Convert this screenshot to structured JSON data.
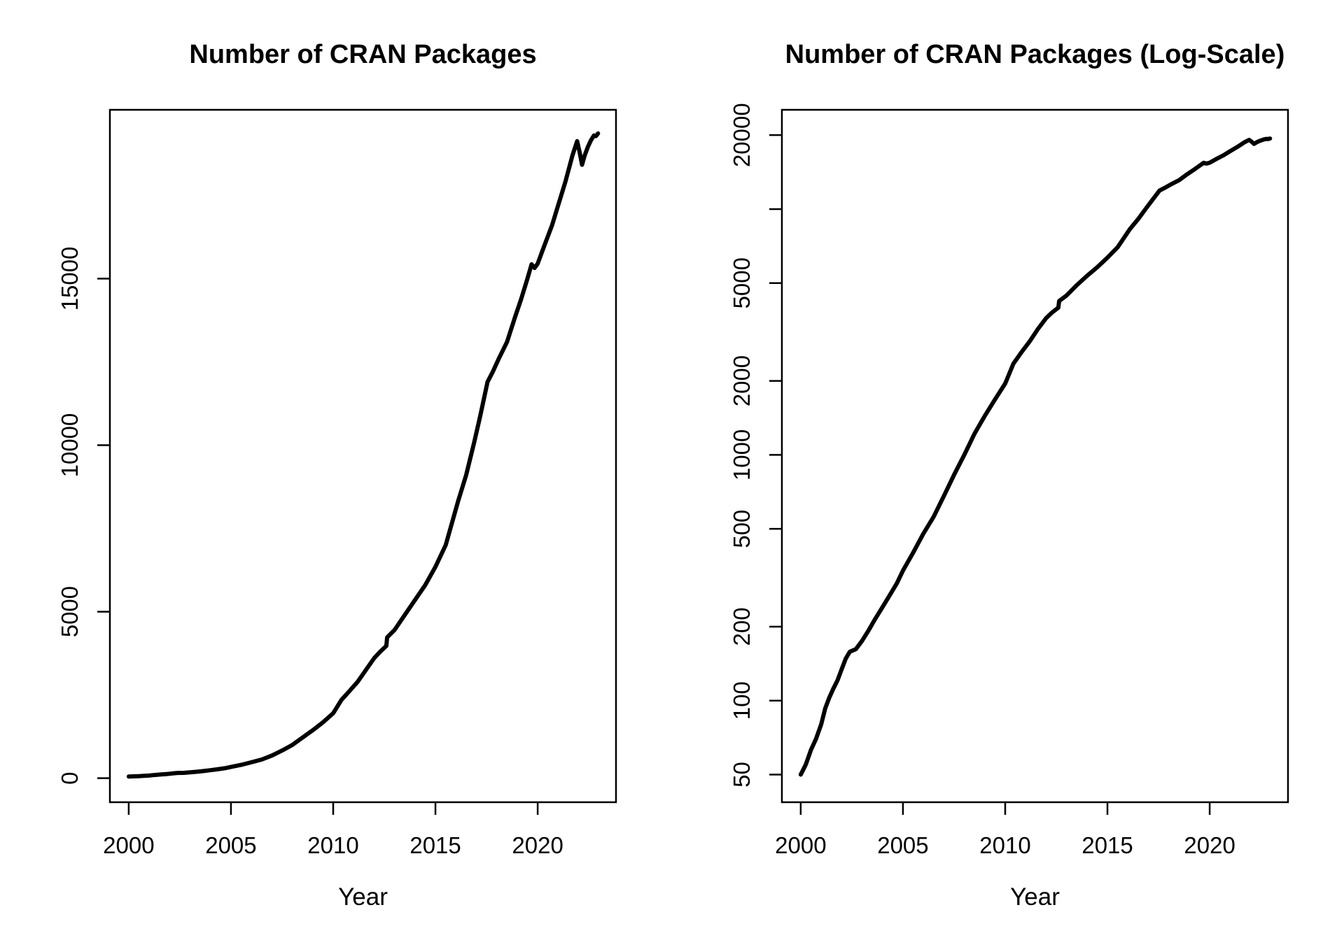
{
  "page": {
    "background_color": "#ffffff",
    "foreground_color": "#000000"
  },
  "chart_data": [
    {
      "type": "line",
      "title": "Number of CRAN Packages",
      "xlabel": "Year",
      "ylabel": "",
      "y_scale": "linear",
      "grid": false,
      "legend": null,
      "xlim": [
        1999.08,
        2023.83
      ],
      "ylim": [
        -721,
        20070
      ],
      "x_ticks": [
        {
          "v": 2000,
          "label": "2000"
        },
        {
          "v": 2005,
          "label": "2005"
        },
        {
          "v": 2010,
          "label": "2010"
        },
        {
          "v": 2015,
          "label": "2015"
        },
        {
          "v": 2020,
          "label": "2020"
        }
      ],
      "y_ticks": [
        {
          "v": 0,
          "label": "0"
        },
        {
          "v": 5000,
          "label": "5000"
        },
        {
          "v": 10000,
          "label": "10000"
        },
        {
          "v": 15000,
          "label": "15000"
        }
      ],
      "line_color": "#000000",
      "line_width": 6,
      "series": [
        {
          "name": "CRAN packages",
          "x": [
            2000.0,
            2000.25,
            2000.5,
            2000.75,
            2001.0,
            2001.2,
            2001.4,
            2001.6,
            2001.8,
            2002.0,
            2002.2,
            2002.4,
            2002.7,
            2003.0,
            2003.3,
            2003.6,
            2004.0,
            2004.35,
            2004.7,
            2005.0,
            2005.5,
            2006.0,
            2006.5,
            2007.0,
            2007.5,
            2008.0,
            2008.5,
            2009.0,
            2009.5,
            2010.0,
            2010.4,
            2010.8,
            2011.2,
            2011.6,
            2012.0,
            2012.3,
            2012.6,
            2012.64,
            2013.0,
            2013.5,
            2014.0,
            2014.5,
            2015.0,
            2015.5,
            2016.1,
            2016.5,
            2016.9,
            2017.2,
            2017.55,
            2017.8,
            2018.1,
            2018.5,
            2018.9,
            2019.2,
            2019.5,
            2019.7,
            2019.85,
            2020.0,
            2020.3,
            2020.7,
            2021.0,
            2021.35,
            2021.7,
            2021.93,
            2022.05,
            2022.17,
            2022.3,
            2022.45,
            2022.6,
            2022.75,
            2022.85,
            2022.95
          ],
          "y": [
            50,
            55,
            63,
            70,
            80,
            93,
            103,
            112,
            121,
            134,
            148,
            158,
            162,
            175,
            192,
            212,
            240,
            268,
            300,
            338,
            400,
            478,
            560,
            680,
            830,
            1000,
            1220,
            1440,
            1680,
            1950,
            2350,
            2620,
            2900,
            3250,
            3600,
            3800,
            3970,
            4230,
            4450,
            4900,
            5350,
            5800,
            6350,
            7000,
            8300,
            9100,
            10100,
            10900,
            11900,
            12200,
            12600,
            13100,
            13860,
            14400,
            15000,
            15430,
            15320,
            15450,
            15950,
            16600,
            17200,
            17900,
            18700,
            19130,
            18800,
            18420,
            18700,
            18950,
            19150,
            19300,
            19280,
            19360
          ]
        }
      ]
    },
    {
      "type": "line",
      "title": "Number of CRAN Packages (Log-Scale)",
      "xlabel": "Year",
      "ylabel": "",
      "y_scale": "log",
      "grid": false,
      "legend": null,
      "xlim": [
        1999.08,
        2023.83
      ],
      "ylim": [
        38.6,
        25350
      ],
      "x_ticks": [
        {
          "v": 2000,
          "label": "2000"
        },
        {
          "v": 2005,
          "label": "2005"
        },
        {
          "v": 2010,
          "label": "2010"
        },
        {
          "v": 2015,
          "label": "2015"
        },
        {
          "v": 2020,
          "label": "2020"
        }
      ],
      "y_ticks": [
        {
          "v": 50,
          "label": "50"
        },
        {
          "v": 100,
          "label": "100"
        },
        {
          "v": 200,
          "label": "200"
        },
        {
          "v": 500,
          "label": "500"
        },
        {
          "v": 1000,
          "label": "1000"
        },
        {
          "v": 2000,
          "label": "2000"
        },
        {
          "v": 5000,
          "label": "5000"
        },
        {
          "v": 10000,
          "label": ""
        },
        {
          "v": 20000,
          "label": "20000"
        }
      ],
      "line_color": "#000000",
      "line_width": 6,
      "series": [
        {
          "name": "CRAN packages",
          "x": [
            2000.0,
            2000.25,
            2000.5,
            2000.75,
            2001.0,
            2001.2,
            2001.4,
            2001.6,
            2001.8,
            2002.0,
            2002.2,
            2002.4,
            2002.7,
            2003.0,
            2003.3,
            2003.6,
            2004.0,
            2004.35,
            2004.7,
            2005.0,
            2005.5,
            2006.0,
            2006.5,
            2007.0,
            2007.5,
            2008.0,
            2008.5,
            2009.0,
            2009.5,
            2010.0,
            2010.4,
            2010.8,
            2011.2,
            2011.6,
            2012.0,
            2012.3,
            2012.6,
            2012.64,
            2013.0,
            2013.5,
            2014.0,
            2014.5,
            2015.0,
            2015.5,
            2016.1,
            2016.5,
            2016.9,
            2017.2,
            2017.55,
            2017.8,
            2018.1,
            2018.5,
            2018.9,
            2019.2,
            2019.5,
            2019.7,
            2019.85,
            2020.0,
            2020.3,
            2020.7,
            2021.0,
            2021.35,
            2021.7,
            2021.93,
            2022.05,
            2022.17,
            2022.3,
            2022.45,
            2022.6,
            2022.75,
            2022.85,
            2022.95
          ],
          "y": [
            50,
            55,
            63,
            70,
            80,
            93,
            103,
            112,
            121,
            134,
            148,
            158,
            162,
            175,
            192,
            212,
            240,
            268,
            300,
            338,
            400,
            478,
            560,
            680,
            830,
            1000,
            1220,
            1440,
            1680,
            1950,
            2350,
            2620,
            2900,
            3250,
            3600,
            3800,
            3970,
            4230,
            4450,
            4900,
            5350,
            5800,
            6350,
            7000,
            8300,
            9100,
            10100,
            10900,
            11900,
            12200,
            12600,
            13100,
            13860,
            14400,
            15000,
            15430,
            15320,
            15450,
            15950,
            16600,
            17200,
            17900,
            18700,
            19130,
            18800,
            18420,
            18700,
            18950,
            19150,
            19300,
            19280,
            19360
          ]
        }
      ]
    }
  ]
}
